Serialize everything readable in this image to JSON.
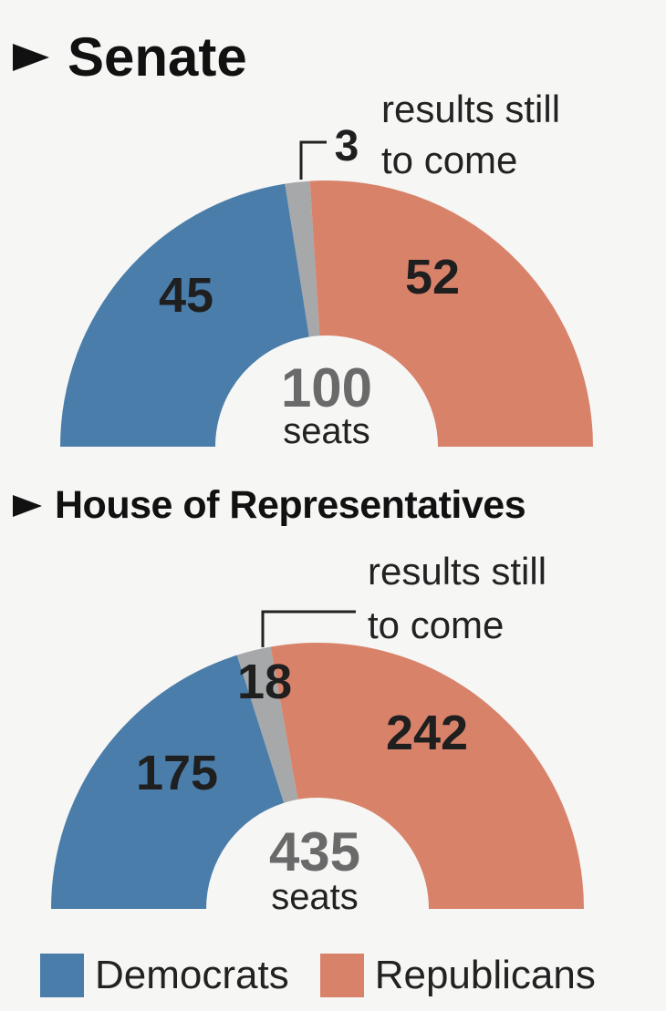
{
  "colors": {
    "democrats": "#4a7daa",
    "republicans": "#d9826a",
    "pending": "#a6a8aa",
    "label": "#1f1f1f",
    "total": "#6a6a6a"
  },
  "legend": [
    {
      "label": "Democrats",
      "color": "#4a7daa"
    },
    {
      "label": "Republicans",
      "color": "#d9826a"
    }
  ],
  "chart_data": [
    {
      "type": "pie",
      "title": "Senate",
      "total_value": "100",
      "total_unit": "seats",
      "pending_note_line1": "results still",
      "pending_note_line2": "to come",
      "slices": [
        {
          "label": "Democrats",
          "value": 45,
          "color": "#4a7daa"
        },
        {
          "label": "results still to come",
          "value": 3,
          "color": "#a6a8aa"
        },
        {
          "label": "Republicans",
          "value": 52,
          "color": "#d9826a"
        }
      ]
    },
    {
      "type": "pie",
      "title": "House of Representatives",
      "total_value": "435",
      "total_unit": "seats",
      "pending_note_line1": "results still",
      "pending_note_line2": "to come",
      "slices": [
        {
          "label": "Democrats",
          "value": 175,
          "color": "#4a7daa"
        },
        {
          "label": "results still to come",
          "value": 18,
          "color": "#a6a8aa"
        },
        {
          "label": "Republicans",
          "value": 242,
          "color": "#d9826a"
        }
      ]
    }
  ]
}
